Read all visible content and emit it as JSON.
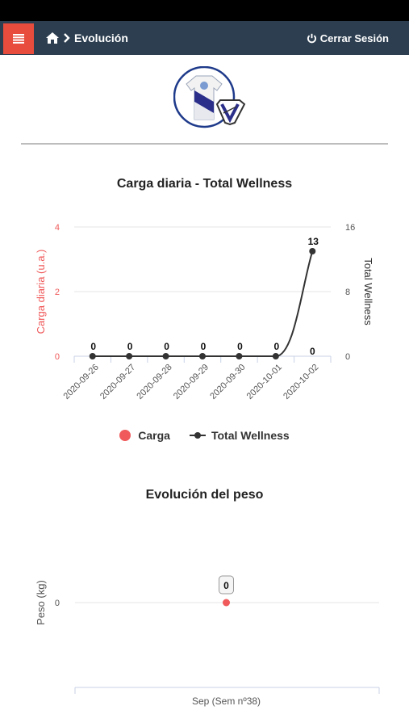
{
  "header": {
    "breadcrumb": "Evolución",
    "logout_label": "Cerrar Sesión",
    "menu_icon": "hamburger-icon",
    "home_icon": "home-icon",
    "power_icon": "power-icon",
    "colors": {
      "topbar": "#2c3e50",
      "menu_button": "#e74c3c"
    }
  },
  "chart_data": [
    {
      "type": "line",
      "title": "Carga diaria - Total Wellness",
      "categories": [
        "2020-09-26",
        "2020-09-27",
        "2020-09-28",
        "2020-09-29",
        "2020-09-30",
        "2020-10-01",
        "2020-10-02"
      ],
      "series": [
        {
          "name": "Carga",
          "axis": "left",
          "color": "#f05a5b",
          "values": [
            0,
            0,
            0,
            0,
            0,
            0,
            0
          ],
          "labels": [
            "",
            "",
            "",
            "",
            "",
            "",
            ""
          ]
        },
        {
          "name": "Total Wellness",
          "axis": "right",
          "color": "#333333",
          "values": [
            0,
            0,
            0,
            0,
            0,
            0,
            13
          ],
          "labels": [
            "0",
            "0",
            "0",
            "0",
            "0",
            "0",
            "13"
          ]
        }
      ],
      "y_left": {
        "label": "Carga diaria (u.a.)",
        "min": 0,
        "max": 4,
        "ticks": [
          "0",
          "2",
          "4"
        ],
        "color": "#f05a5b"
      },
      "y_right": {
        "label": "Total Wellness",
        "min": 0,
        "max": 16,
        "ticks": [
          "0",
          "8",
          "16"
        ]
      },
      "extra_labels": [
        "0"
      ],
      "grid": true,
      "legend": "bottom"
    },
    {
      "type": "scatter",
      "title": "Evolución del peso",
      "categories": [
        "Sep (Sem nº38)"
      ],
      "series": [
        {
          "name": "Peso",
          "color": "#f05a5b",
          "values": [
            0
          ],
          "labels": [
            "0"
          ]
        }
      ],
      "ylabel": "Peso (kg)",
      "ticks": [
        "0"
      ],
      "grid": true
    }
  ]
}
